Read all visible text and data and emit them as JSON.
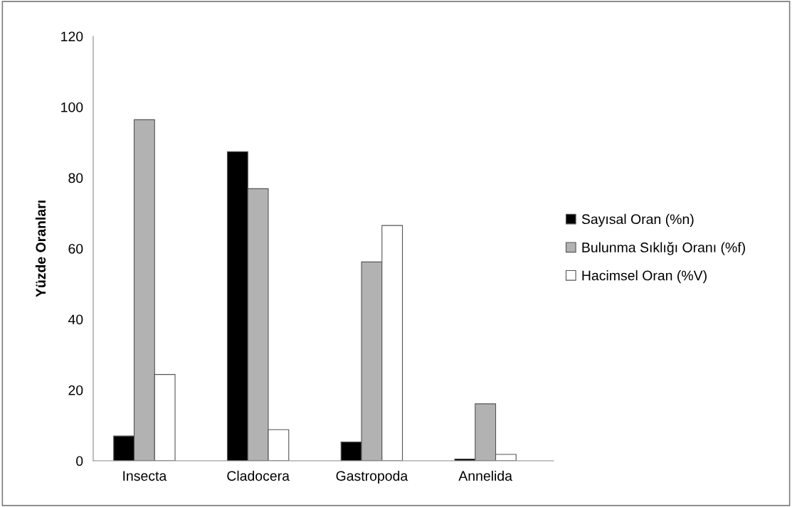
{
  "chart_data": {
    "type": "bar",
    "ylabel": "Yüzde Oranları",
    "categories": [
      "Insecta",
      "Cladocera",
      "Gastropoda",
      "Annelida"
    ],
    "series": [
      {
        "name": "Sayısal Oran (%n)",
        "color": "#000000",
        "values": [
          7.0,
          87.4,
          5.3,
          0.5
        ]
      },
      {
        "name": "Bulunma Sıklığı Oranı (%f)",
        "color": "#b2b2b2",
        "values": [
          96.4,
          76.9,
          56.2,
          16.1
        ]
      },
      {
        "name": "Hacimsel Oran (%V)",
        "color": "#ffffff",
        "values": [
          24.4,
          8.8,
          66.5,
          1.8
        ]
      }
    ],
    "ylim": [
      0,
      120
    ],
    "yticks": [
      0,
      20,
      40,
      60,
      80,
      100,
      120
    ],
    "grid": false,
    "legend": "right"
  }
}
